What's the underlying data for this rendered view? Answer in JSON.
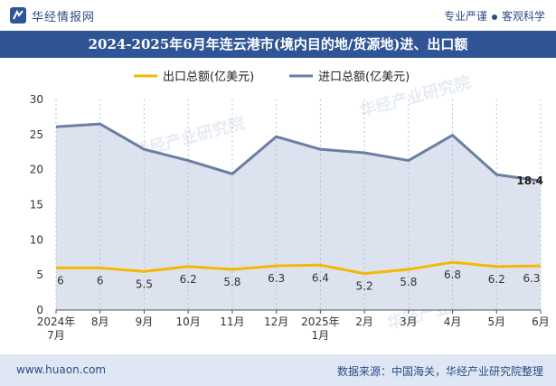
{
  "header": {
    "site_name": "华经情报网",
    "tagline_left": "专业严谨",
    "tagline_right": "客观科学"
  },
  "footer": {
    "website": "www.huaon.com",
    "source": "数据来源：中国海关，华经产业研究院整理"
  },
  "watermark": "华经产业研究院",
  "chart_data": {
    "type": "line",
    "title": "2024-2025年6月年连云港市(境内目的地/货源地)进、出口额",
    "categories": [
      "2024年\n7月",
      "8月",
      "9月",
      "10月",
      "11月",
      "12月",
      "2025年\n1月",
      "2月",
      "3月",
      "4月",
      "5月",
      "6月"
    ],
    "series": [
      {
        "name": "出口总额(亿美元)",
        "values": [
          6,
          6,
          5.5,
          6.2,
          5.8,
          6.3,
          6.4,
          5.2,
          5.8,
          6.8,
          6.2,
          6.3
        ],
        "color": "#f5b800",
        "label_mode": "all"
      },
      {
        "name": "进口总额(亿美元)",
        "values": [
          26.1,
          26.5,
          22.9,
          21.3,
          19.4,
          24.7,
          22.9,
          22.4,
          21.3,
          24.9,
          19.3,
          18.4
        ],
        "color": "#6b7ea3",
        "label_mode": "last",
        "area": true,
        "area_color": "#dde3ee"
      }
    ],
    "ylim": [
      0,
      30
    ],
    "yticks": [
      0,
      5,
      10,
      15,
      20,
      25,
      30
    ],
    "grid": false,
    "legend": "top-center"
  }
}
